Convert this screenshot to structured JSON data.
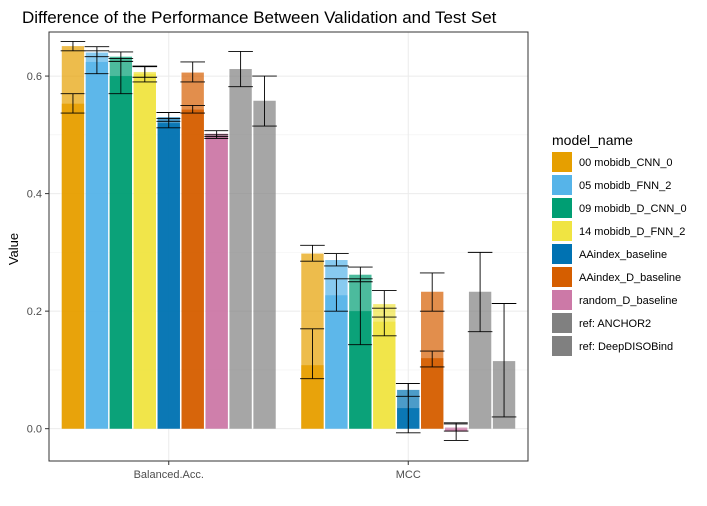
{
  "chart_data": {
    "type": "bar",
    "title": "Difference of the Performance Between Validation and Test Set",
    "xlabel": "",
    "ylabel": "Value",
    "ylim": [
      -0.055,
      0.675
    ],
    "yticks": [
      "0.0",
      "0.2",
      "0.4",
      "0.6"
    ],
    "ytick_values": [
      0.0,
      0.2,
      0.4,
      0.6
    ],
    "grid": true,
    "legend_placement": "right",
    "legend_title": "model_name",
    "categories": [
      "Balanced.Acc.",
      "MCC"
    ],
    "series": [
      {
        "name": "00 mobidb_CNN_0",
        "color": "#E69F00",
        "values": [
          0.553,
          0.108
        ],
        "values2": [
          0.651,
          0.298
        ],
        "err": [
          [
            0.537,
            0.57
          ],
          [
            0.085,
            0.17
          ]
        ],
        "err2": [
          [
            0.643,
            0.659
          ],
          [
            0.285,
            0.312
          ]
        ]
      },
      {
        "name": "05 mobidb_FNN_2",
        "color": "#56B4E9",
        "values": [
          0.624,
          0.227
        ],
        "values2": [
          0.64,
          0.287
        ],
        "err": [
          [
            0.604,
            0.643
          ],
          [
            0.2,
            0.255
          ]
        ],
        "err2": [
          [
            0.633,
            0.65
          ],
          [
            0.277,
            0.298
          ]
        ]
      },
      {
        "name": "09 mobidb_D_CNN_0",
        "color": "#009E73",
        "values": [
          0.6,
          0.2
        ],
        "values2": [
          0.633,
          0.262
        ],
        "err": [
          [
            0.57,
            0.63
          ],
          [
            0.143,
            0.255
          ]
        ],
        "err2": [
          [
            0.625,
            0.641
          ],
          [
            0.25,
            0.275
          ]
        ]
      },
      {
        "name": "14 mobidb_D_FNN_2",
        "color": "#F0E442",
        "values": [
          0.604,
          0.182
        ],
        "values2": [
          0.607,
          0.212
        ],
        "err": [
          [
            0.59,
            0.617
          ],
          [
            0.158,
            0.205
          ]
        ],
        "err2": [
          [
            0.598,
            0.616
          ],
          [
            0.19,
            0.235
          ]
        ]
      },
      {
        "name": "AAindex_baseline",
        "color": "#0072B2",
        "values": [
          0.52,
          0.035
        ],
        "values2": [
          0.53,
          0.066
        ],
        "err": [
          [
            0.512,
            0.528
          ],
          [
            -0.007,
            0.077
          ]
        ],
        "err2": [
          [
            0.523,
            0.538
          ],
          [
            0.055,
            0.077
          ]
        ]
      },
      {
        "name": "AAindex_D_baseline",
        "color": "#D55E00",
        "values": [
          0.543,
          0.12
        ],
        "values2": [
          0.606,
          0.233
        ],
        "err": [
          [
            0.537,
            0.55
          ],
          [
            0.105,
            0.132
          ]
        ],
        "err2": [
          [
            0.59,
            0.624
          ],
          [
            0.2,
            0.265
          ]
        ]
      },
      {
        "name": "random_D_baseline",
        "color": "#CC79A7",
        "values": [
          0.497,
          -0.005
        ],
        "values2": [
          0.502,
          0.002
        ],
        "err": [
          [
            0.494,
            0.5
          ],
          [
            -0.02,
            0.01
          ]
        ],
        "err2": [
          [
            0.497,
            0.507
          ],
          [
            -0.004,
            0.008
          ]
        ]
      },
      {
        "name": "ref: ANCHOR2",
        "color": "#808080",
        "values": [
          0.612,
          0.233
        ],
        "err": [
          [
            0.582,
            0.642
          ],
          [
            0.165,
            0.3
          ]
        ]
      },
      {
        "name": "ref: DeepDISOBind",
        "color": "#808080",
        "values": [
          0.558,
          0.115
        ],
        "err": [
          [
            0.515,
            0.6
          ],
          [
            0.02,
            0.213
          ]
        ]
      }
    ]
  }
}
